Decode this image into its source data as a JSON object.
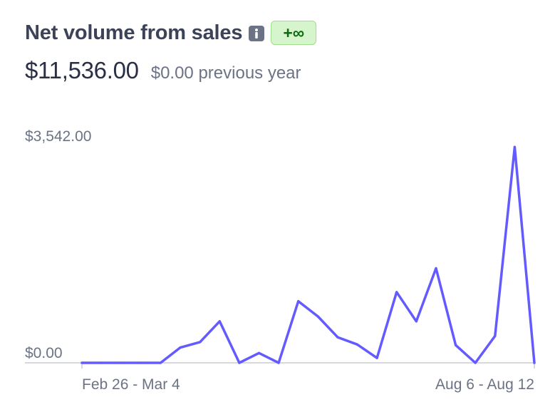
{
  "header": {
    "title": "Net volume from sales",
    "badge": "+∞",
    "info_icon": "info-icon"
  },
  "summary": {
    "current_value": "$11,536.00",
    "previous_value": "$0.00 previous year"
  },
  "colors": {
    "line": "#635bff",
    "badge_bg": "#d6f5cd",
    "badge_border": "#9ee08b",
    "badge_text": "#0f6b0f",
    "baseline": "#c8ccd4",
    "axis_text": "#6b7385"
  },
  "chart_data": {
    "type": "line",
    "y_tick_labels": [
      "$3,542.00",
      "$0.00"
    ],
    "x_tick_labels": [
      "Feb 26 - Mar 4",
      "Aug 6 - Aug 12"
    ],
    "ylim": [
      0,
      3542
    ],
    "grid": false,
    "series": [
      {
        "values": [
          0,
          0,
          0,
          0,
          0,
          250,
          340,
          680,
          0,
          160,
          0,
          1010,
          760,
          420,
          300,
          80,
          1160,
          680,
          1550,
          290,
          0,
          440,
          3540,
          0
        ]
      }
    ]
  }
}
